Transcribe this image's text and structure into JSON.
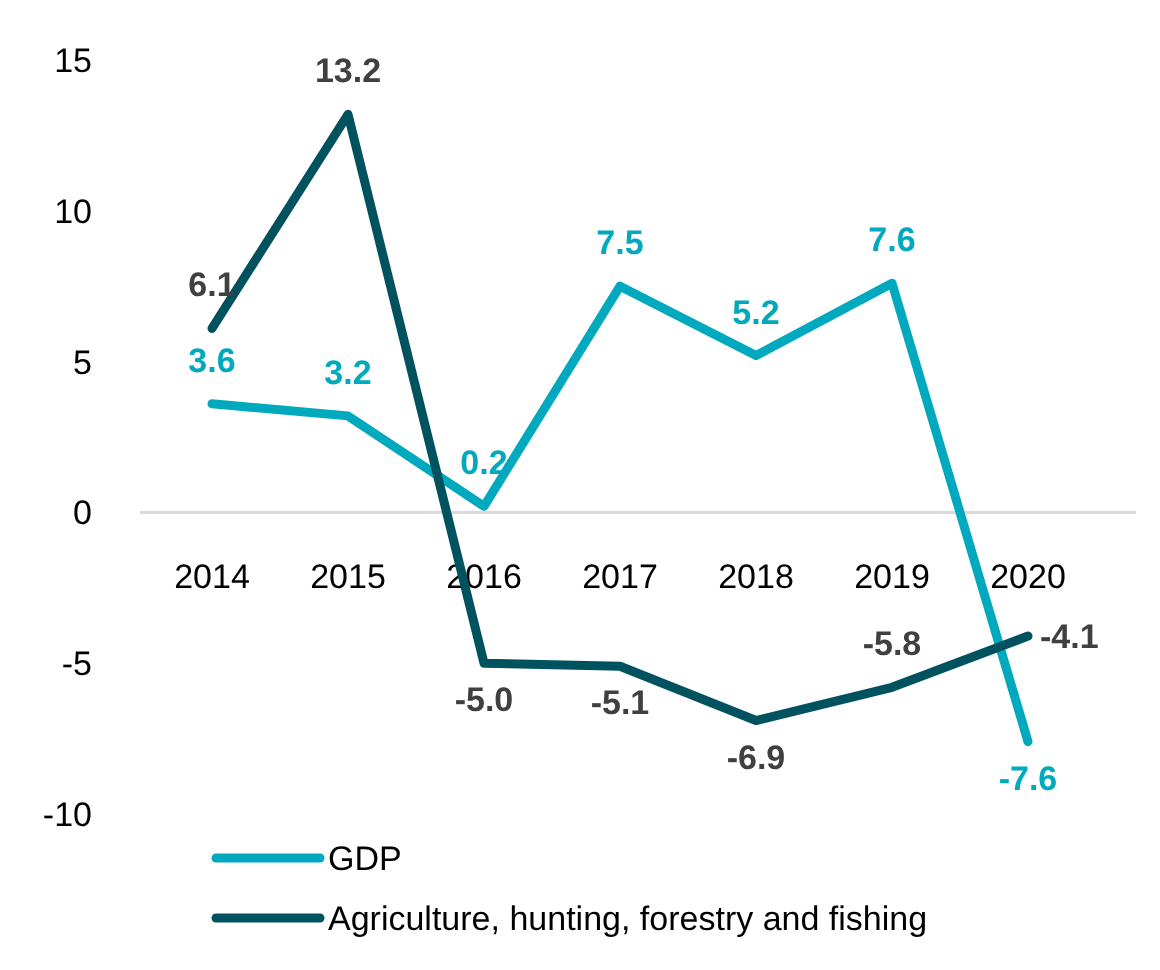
{
  "chart_data": {
    "type": "line",
    "categories": [
      "2014",
      "2015",
      "2016",
      "2017",
      "2018",
      "2019",
      "2020"
    ],
    "series": [
      {
        "name": "GDP",
        "color": "#00a9bd",
        "values": [
          3.6,
          3.2,
          0.2,
          7.5,
          5.2,
          7.6,
          -7.6
        ],
        "value_labels": [
          "3.6",
          "3.2",
          "0.2",
          "7.5",
          "5.2",
          "7.6",
          "-7.6"
        ]
      },
      {
        "name": "Agriculture, hunting, forestry and fishing",
        "color": "#00535e",
        "values": [
          6.1,
          13.2,
          -5.0,
          -5.1,
          -6.9,
          -5.8,
          -4.1
        ],
        "value_labels": [
          "6.1",
          "13.2",
          "-5.0",
          "-5.1",
          "-6.9",
          "-5.8",
          "-4.1"
        ]
      }
    ],
    "ylim": [
      -10,
      15
    ],
    "yticks": [
      -10,
      -5,
      0,
      5,
      10,
      15
    ],
    "grid": false,
    "legend": "bottom",
    "marker": "none",
    "line_style": "solid"
  }
}
